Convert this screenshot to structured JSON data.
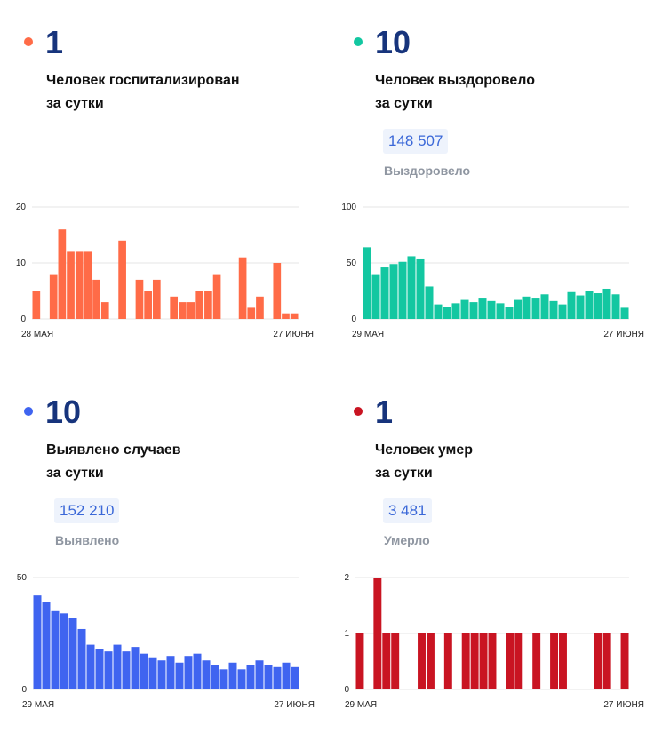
{
  "panels": [
    {
      "key": "hosp",
      "value": "1",
      "label_line1": "Человек госпитализирован",
      "label_line2": "за сутки",
      "total": "",
      "total_caption": "",
      "color": "#ff6b47"
    },
    {
      "key": "recovered",
      "value": "10",
      "label_line1": "Человек выздоровело",
      "label_line2": "за сутки",
      "total": "148 507",
      "total_caption": "Выздоровело",
      "color": "#13c7a1"
    },
    {
      "key": "cases",
      "value": "10",
      "label_line1": "Выявлено случаев",
      "label_line2": "за сутки",
      "total": "152 210",
      "total_caption": "Выявлено",
      "color": "#3f64f0"
    },
    {
      "key": "deaths",
      "value": "1",
      "label_line1": "Человек умер",
      "label_line2": "за сутки",
      "total": "3 481",
      "total_caption": "Умерло",
      "color": "#c91422"
    }
  ],
  "chart_data": [
    {
      "type": "bar",
      "x_start_label": "28 МАЯ",
      "x_end_label": "27 ИЮНЯ",
      "ylim": [
        0,
        20
      ],
      "yticks": [
        0,
        10,
        20
      ],
      "grid": true,
      "values": [
        5,
        0,
        8,
        16,
        12,
        12,
        12,
        7,
        3,
        0,
        14,
        0,
        7,
        5,
        7,
        0,
        4,
        3,
        3,
        5,
        5,
        8,
        0,
        0,
        11,
        2,
        4,
        0,
        10,
        1,
        1
      ]
    },
    {
      "type": "bar",
      "x_start_label": "29 МАЯ",
      "x_end_label": "27 ИЮНЯ",
      "ylim": [
        0,
        100
      ],
      "yticks": [
        0,
        50,
        100
      ],
      "grid": true,
      "values": [
        64,
        40,
        46,
        49,
        51,
        56,
        54,
        29,
        13,
        11,
        14,
        17,
        15,
        19,
        16,
        14,
        11,
        17,
        20,
        19,
        22,
        16,
        13,
        24,
        21,
        25,
        23,
        27,
        22,
        10
      ]
    },
    {
      "type": "bar",
      "x_start_label": "29 МАЯ",
      "x_end_label": "27 ИЮНЯ",
      "ylim": [
        0,
        50
      ],
      "yticks": [
        0,
        50
      ],
      "grid": true,
      "values": [
        42,
        39,
        35,
        34,
        32,
        27,
        20,
        18,
        17,
        20,
        17,
        19,
        16,
        14,
        13,
        15,
        12,
        15,
        16,
        13,
        11,
        9,
        12,
        9,
        11,
        13,
        11,
        10,
        12,
        10
      ]
    },
    {
      "type": "bar",
      "x_start_label": "29 МАЯ",
      "x_end_label": "27 ИЮНЯ",
      "ylim": [
        0,
        2
      ],
      "yticks": [
        0,
        1,
        2
      ],
      "grid": true,
      "values": [
        1,
        0,
        2,
        1,
        1,
        0,
        0,
        1,
        1,
        0,
        1,
        0,
        1,
        1,
        1,
        1,
        0,
        1,
        1,
        0,
        1,
        0,
        1,
        1,
        0,
        0,
        0,
        1,
        1,
        0,
        1
      ]
    }
  ]
}
